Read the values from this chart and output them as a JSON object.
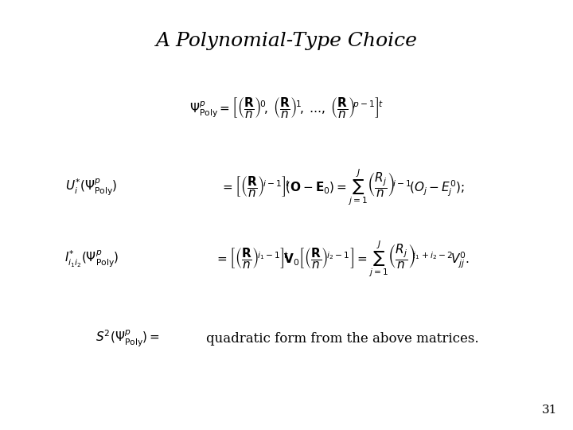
{
  "title": "A Polynomial-Type Choice",
  "background_color": "#ffffff",
  "text_color": "#000000",
  "title_fontsize": 18,
  "eq_fontsize": 11,
  "page_number": "31",
  "page_fontsize": 11
}
